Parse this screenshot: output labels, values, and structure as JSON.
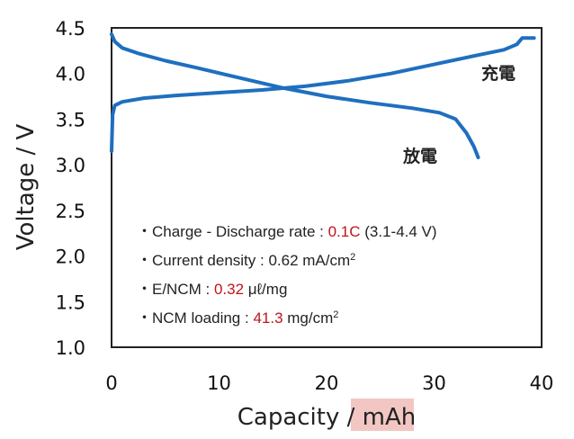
{
  "chart_data": {
    "type": "line",
    "xlabel_prefix": "Capacity / ",
    "xlabel_unit": "mAh",
    "ylabel": "Voltage / V",
    "xlim": [
      0,
      40
    ],
    "ylim": [
      1.0,
      4.5
    ],
    "x_ticks": [
      "0",
      "10",
      "20",
      "30",
      "40"
    ],
    "y_ticks": [
      "1.0",
      "1.5",
      "2.0",
      "2.5",
      "3.0",
      "3.5",
      "4.0",
      "4.5"
    ],
    "grid": false,
    "colors": {
      "line": "#1f6fbf",
      "highlight": "#f2c7c3",
      "emphasis": "#c0141e"
    },
    "series": [
      {
        "name": "充電",
        "points": [
          [
            0.0,
            3.15
          ],
          [
            0.1,
            3.55
          ],
          [
            0.3,
            3.65
          ],
          [
            1,
            3.69
          ],
          [
            3,
            3.73
          ],
          [
            6,
            3.76
          ],
          [
            10,
            3.79
          ],
          [
            14,
            3.82
          ],
          [
            18,
            3.86
          ],
          [
            22,
            3.92
          ],
          [
            26,
            4.0
          ],
          [
            30,
            4.1
          ],
          [
            34,
            4.2
          ],
          [
            36.5,
            4.26
          ],
          [
            37.7,
            4.32
          ],
          [
            38.2,
            4.39
          ],
          [
            39.3,
            4.39
          ]
        ]
      },
      {
        "name": "放電",
        "points": [
          [
            0.0,
            4.43
          ],
          [
            0.3,
            4.35
          ],
          [
            1,
            4.28
          ],
          [
            2.5,
            4.22
          ],
          [
            5,
            4.14
          ],
          [
            8,
            4.06
          ],
          [
            12,
            3.95
          ],
          [
            16,
            3.84
          ],
          [
            20,
            3.75
          ],
          [
            24,
            3.68
          ],
          [
            28,
            3.62
          ],
          [
            30.5,
            3.57
          ],
          [
            32,
            3.5
          ],
          [
            33,
            3.35
          ],
          [
            33.7,
            3.2
          ],
          [
            34.1,
            3.08
          ]
        ]
      }
    ],
    "notes": [
      [
        {
          "t": "・Charge - Discharge rate : "
        },
        {
          "t": "0.1C",
          "red": true
        },
        {
          "t": " (3.1-4.4 V)"
        }
      ],
      [
        {
          "t": "・Current density : 0.62 mA/cm"
        },
        {
          "t": "2",
          "sup": true
        }
      ],
      [
        {
          "t": "・E/NCM : "
        },
        {
          "t": "0.32",
          "red": true
        },
        {
          "t": " μℓ/mg"
        }
      ],
      [
        {
          "t": "・NCM loading : "
        },
        {
          "t": "41.3",
          "red": true
        },
        {
          "t": " mg/cm"
        },
        {
          "t": "2",
          "sup": true
        }
      ]
    ]
  }
}
